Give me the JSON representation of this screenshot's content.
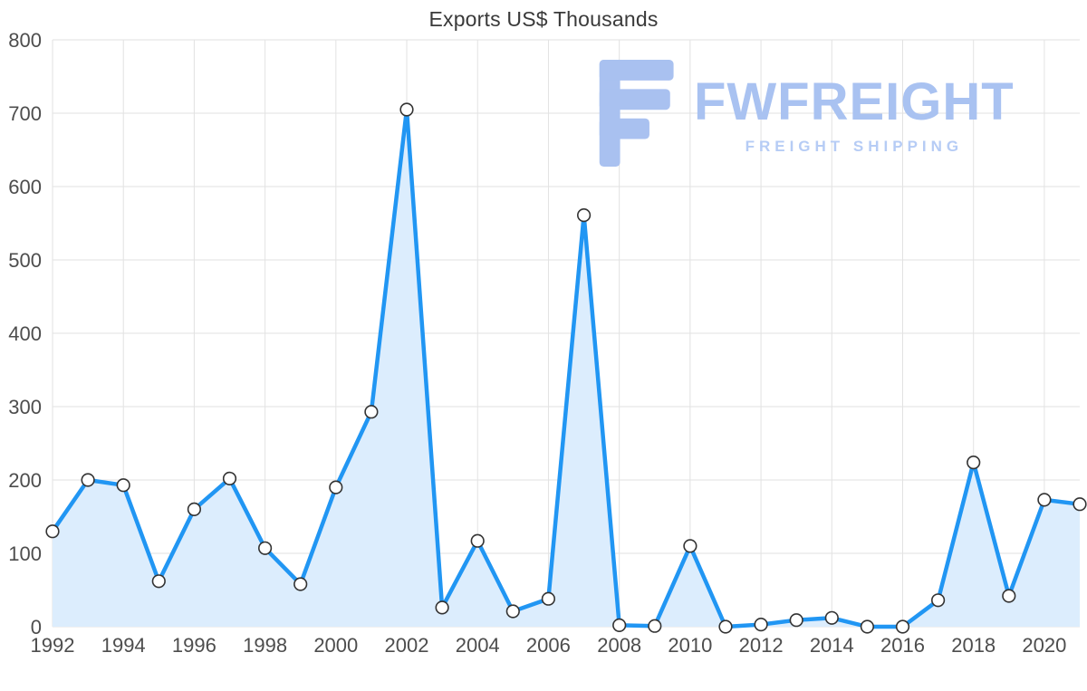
{
  "title": "Exports US$ Thousands",
  "watermark": {
    "brand": "FWFREIGHT",
    "tagline": "FREIGHT SHIPPING",
    "icon_color": "#a9c1f0",
    "brand_color": "#a9c2f1",
    "tagline_color": "#b6ccf5"
  },
  "chart_data": {
    "type": "area",
    "title": "Exports US$ Thousands",
    "x": [
      1992,
      1993,
      1994,
      1995,
      1996,
      1997,
      1998,
      1999,
      2000,
      2001,
      2002,
      2003,
      2004,
      2005,
      2006,
      2007,
      2008,
      2009,
      2010,
      2011,
      2012,
      2013,
      2014,
      2015,
      2016,
      2017,
      2018,
      2019,
      2020,
      2021
    ],
    "series": [
      {
        "name": "Exports US$ Thousands",
        "values": [
          130,
          200,
          193,
          62,
          160,
          202,
          107,
          58,
          190,
          293,
          705,
          26,
          117,
          21,
          38,
          561,
          2,
          1,
          110,
          0,
          3,
          9,
          12,
          0,
          0,
          36,
          224,
          42,
          173,
          167
        ]
      }
    ],
    "ylim": [
      0,
      800
    ],
    "yticks": [
      0,
      100,
      200,
      300,
      400,
      500,
      600,
      700,
      800
    ],
    "xtick_labels": [
      "1992",
      "1994",
      "1996",
      "1998",
      "2000",
      "2002",
      "2004",
      "2006",
      "2008",
      "2010",
      "2012",
      "2014",
      "2016",
      "2018",
      "2020"
    ],
    "grid": true,
    "legend": "none",
    "line_color": "#2196f3",
    "fill_color": "#dcedfd",
    "marker_fill": "#ffffff",
    "marker_stroke": "#333333",
    "grid_color": "#e2e2e2",
    "tick_label_color": "#4d4d4d"
  }
}
